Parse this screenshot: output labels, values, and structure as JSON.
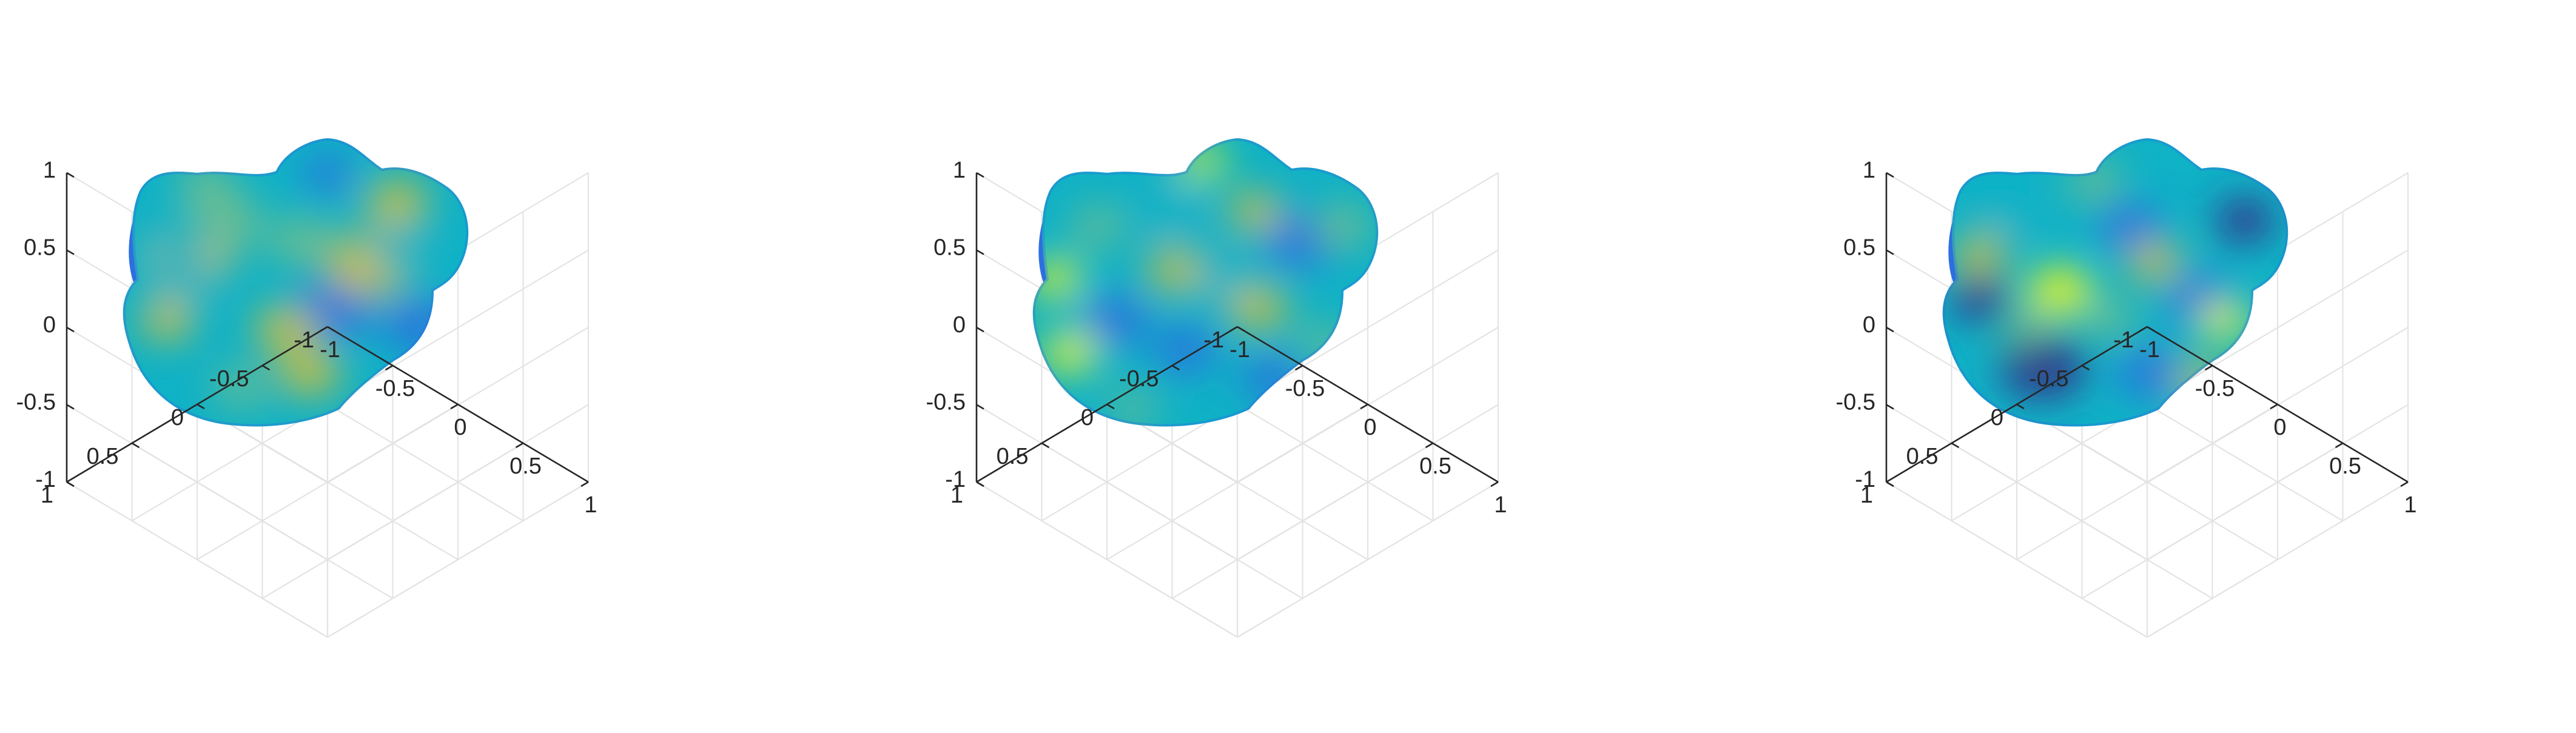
{
  "chart_data": [
    {
      "type": "surface",
      "title": "",
      "xlabel": "",
      "ylabel": "",
      "zlabel": "",
      "xlim": [
        -1,
        1
      ],
      "ylim": [
        -1,
        1
      ],
      "zlim": [
        -1,
        1
      ],
      "xticks": [
        -1,
        -0.5,
        0,
        0.5,
        1
      ],
      "yticks": [
        -1,
        -0.5,
        0,
        0.5,
        1
      ],
      "zticks": [
        -1,
        -0.5,
        0,
        0.5,
        1
      ],
      "xtick_labels": [
        "-1",
        "-0.5",
        "0",
        "0.5",
        "1"
      ],
      "ytick_labels": [
        "-1",
        "-0.5",
        "0",
        "0.5",
        "1"
      ],
      "ztick_labels": [
        "-1",
        "-0.5",
        "0",
        "0.5",
        "1"
      ],
      "grid": true,
      "colormap": "parula",
      "colors": [
        "#352a87",
        "#2c6fe0",
        "#10b2c6",
        "#72be8c",
        "#d6bf3a",
        "#f9fb0e"
      ],
      "surface_blobs": [
        [
          0.2,
          0.4,
          0.78,
          0.55
        ],
        [
          0.3,
          0.28,
          0.6,
          0.5
        ],
        [
          0.18,
          0.48,
          0.32,
          0.42
        ],
        [
          0.18,
          0.34,
          0.4,
          0.38
        ],
        [
          0.62,
          0.58,
          0.1,
          0.5
        ],
        [
          0.52,
          0.35,
          0.66,
          0.42
        ],
        [
          0.48,
          0.65,
          0.88,
          0.4
        ],
        [
          0.72,
          0.43,
          0.86,
          0.55
        ],
        [
          0.8,
          0.22,
          0.8,
          0.4
        ],
        [
          0.86,
          0.64,
          0.1,
          0.45
        ],
        [
          0.8,
          0.38,
          0.35,
          0.38
        ],
        [
          0.55,
          0.8,
          0.82,
          0.4
        ],
        [
          0.35,
          0.85,
          0.62,
          0.35
        ],
        [
          0.14,
          0.62,
          0.7,
          0.35
        ],
        [
          0.25,
          0.15,
          0.66,
          0.35
        ],
        [
          0.6,
          0.12,
          0.12,
          0.32
        ]
      ]
    },
    {
      "type": "surface",
      "title": "",
      "xlabel": "",
      "ylabel": "",
      "zlabel": "",
      "xlim": [
        -1,
        1
      ],
      "ylim": [
        -1,
        1
      ],
      "zlim": [
        -1,
        1
      ],
      "xticks": [
        -1,
        -0.5,
        0,
        0.5,
        1
      ],
      "yticks": [
        -1,
        -0.5,
        0,
        0.5,
        1
      ],
      "zticks": [
        -1,
        -0.5,
        0,
        0.5,
        1
      ],
      "xtick_labels": [
        "-1",
        "-0.5",
        "0",
        "0.5",
        "1"
      ],
      "ytick_labels": [
        "-1",
        "-0.5",
        "0",
        "0.5",
        "1"
      ],
      "ztick_labels": [
        "-1",
        "-0.5",
        "0",
        "0.5",
        "1"
      ],
      "grid": true,
      "colormap": "parula",
      "colors": [
        "#352a87",
        "#2c6fe0",
        "#10b2c6",
        "#72be8c",
        "#d6bf3a",
        "#f9fb0e"
      ],
      "surface_blobs": [
        [
          0.08,
          0.48,
          0.95,
          0.32
        ],
        [
          0.12,
          0.73,
          0.92,
          0.35
        ],
        [
          0.25,
          0.62,
          0.12,
          0.42
        ],
        [
          0.45,
          0.72,
          0.15,
          0.4
        ],
        [
          0.4,
          0.25,
          0.3,
          0.42
        ],
        [
          0.55,
          0.48,
          0.38,
          0.45
        ],
        [
          0.66,
          0.58,
          0.8,
          0.38
        ],
        [
          0.78,
          0.35,
          0.18,
          0.45
        ],
        [
          0.9,
          0.3,
          0.66,
          0.38
        ],
        [
          0.5,
          0.08,
          0.9,
          0.28
        ],
        [
          0.3,
          0.92,
          0.5,
          0.3
        ],
        [
          0.7,
          0.82,
          0.12,
          0.38
        ],
        [
          0.85,
          0.7,
          0.62,
          0.32
        ],
        [
          0.42,
          0.45,
          0.74,
          0.36
        ],
        [
          0.2,
          0.3,
          0.68,
          0.34
        ],
        [
          0.65,
          0.25,
          0.7,
          0.34
        ]
      ]
    },
    {
      "type": "surface",
      "title": "",
      "xlabel": "",
      "ylabel": "",
      "zlabel": "",
      "xlim": [
        -1,
        1
      ],
      "ylim": [
        -1,
        1
      ],
      "zlim": [
        -1,
        1
      ],
      "xticks": [
        -1,
        -0.5,
        0,
        0.5,
        1
      ],
      "yticks": [
        -1,
        -0.5,
        0,
        0.5,
        1
      ],
      "zticks": [
        -1,
        -0.5,
        0,
        0.5,
        1
      ],
      "xtick_labels": [
        "-1",
        "-0.5",
        "0",
        "0.5",
        "1"
      ],
      "ytick_labels": [
        "-1",
        "-0.5",
        "0",
        "0.5",
        "1"
      ],
      "ztick_labels": [
        "-1",
        "-0.5",
        "0",
        "0.5",
        "1"
      ],
      "grid": true,
      "colormap": "parula",
      "colors": [
        "#352a87",
        "#2c6fe0",
        "#10b2c6",
        "#72be8c",
        "#d6bf3a",
        "#f9fb0e"
      ],
      "surface_blobs": [
        [
          0.35,
          0.52,
          0.98,
          0.42
        ],
        [
          0.12,
          0.4,
          0.82,
          0.35
        ],
        [
          0.12,
          0.55,
          0.08,
          0.38
        ],
        [
          0.62,
          0.42,
          0.75,
          0.35
        ],
        [
          0.88,
          0.28,
          0.02,
          0.38
        ],
        [
          0.3,
          0.78,
          0.05,
          0.55
        ],
        [
          0.75,
          0.55,
          0.12,
          0.42
        ],
        [
          0.55,
          0.3,
          0.15,
          0.4
        ],
        [
          0.82,
          0.62,
          0.9,
          0.32
        ],
        [
          0.45,
          0.15,
          0.6,
          0.35
        ],
        [
          0.2,
          0.25,
          0.3,
          0.35
        ],
        [
          0.6,
          0.8,
          0.25,
          0.4
        ],
        [
          0.75,
          0.82,
          0.7,
          0.3
        ],
        [
          0.5,
          0.62,
          0.62,
          0.32
        ],
        [
          0.25,
          0.65,
          0.6,
          0.3
        ]
      ]
    }
  ]
}
